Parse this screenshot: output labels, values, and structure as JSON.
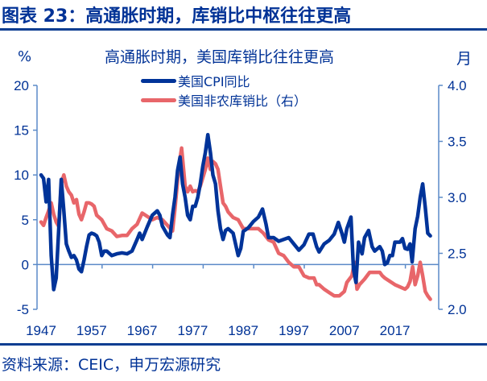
{
  "header": {
    "title": "图表 23：高通胀时期，库销比中枢往往更高"
  },
  "footer": {
    "source": "资料来源：CEIC，申万宏源研究"
  },
  "colors": {
    "cpi": "#003399",
    "ratio": "#e8666a",
    "axis": "#5b8ac8",
    "text": "#003296"
  },
  "chart_data": {
    "type": "line",
    "title": "高通胀时期，美国库销比往往更高",
    "ylabel_left": "%",
    "ylabel_right": "月",
    "ylim_left": [
      -5,
      20
    ],
    "ylim_right": [
      2.0,
      4.0
    ],
    "yticks_left": [
      "20",
      "15",
      "10",
      "5",
      "0",
      "-5"
    ],
    "yticks_right": [
      "4.0",
      "3.5",
      "3.0",
      "2.5",
      "2.0"
    ],
    "xticks": [
      "1947",
      "1957",
      "1967",
      "1977",
      "1987",
      "1997",
      "2007",
      "2017"
    ],
    "grid": false,
    "legend_position": "top-center",
    "series": [
      {
        "name": "美国CPI同比",
        "axis": "left",
        "x": [
          1947.0,
          1947.5,
          1948.0,
          1948.5,
          1949.0,
          1949.5,
          1950.0,
          1950.5,
          1951.0,
          1951.5,
          1952.0,
          1952.5,
          1953.0,
          1953.5,
          1954.0,
          1954.5,
          1955.0,
          1955.5,
          1956.0,
          1956.5,
          1957.0,
          1957.5,
          1958.0,
          1958.5,
          1959.0,
          1959.5,
          1960.0,
          1961.0,
          1962.0,
          1963.0,
          1964.0,
          1965.0,
          1966.0,
          1966.5,
          1967.0,
          1968.0,
          1969.0,
          1970.0,
          1970.5,
          1971.0,
          1972.0,
          1972.5,
          1973.0,
          1973.5,
          1974.0,
          1974.5,
          1975.0,
          1975.5,
          1976.0,
          1976.5,
          1977.0,
          1977.5,
          1978.0,
          1978.5,
          1979.0,
          1979.5,
          1980.0,
          1980.5,
          1981.0,
          1981.5,
          1982.0,
          1982.5,
          1983.0,
          1983.5,
          1984.0,
          1985.0,
          1986.0,
          1986.5,
          1987.0,
          1988.0,
          1989.0,
          1990.0,
          1990.8,
          1991.5,
          1992.0,
          1993.0,
          1994.0,
          1995.0,
          1996.0,
          1997.0,
          1998.0,
          1999.0,
          2000.0,
          2000.8,
          2001.5,
          2002.0,
          2003.0,
          2004.0,
          2005.0,
          2005.8,
          2006.5,
          2007.0,
          2007.5,
          2008.3,
          2008.8,
          2009.3,
          2009.8,
          2010.5,
          2011.0,
          2011.8,
          2012.5,
          2013.0,
          2014.0,
          2014.5,
          2015.0,
          2015.5,
          2016.0,
          2016.5,
          2017.0,
          2018.0,
          2018.5,
          2019.0,
          2019.5,
          2020.0,
          2020.4,
          2021.0,
          2021.5,
          2022.0,
          2022.5,
          2023.0,
          2023.5,
          2024.0
        ],
        "y": [
          10.0,
          9.6,
          7.0,
          9.5,
          1.0,
          -2.8,
          -1.5,
          4.0,
          9.5,
          6.0,
          2.3,
          1.5,
          0.8,
          1.0,
          0.5,
          -0.5,
          -0.8,
          0.5,
          2.0,
          3.3,
          3.5,
          3.4,
          3.2,
          2.5,
          1.0,
          1.5,
          1.5,
          1.0,
          1.2,
          1.3,
          1.2,
          1.5,
          2.8,
          3.5,
          2.8,
          4.2,
          5.5,
          6.0,
          5.5,
          4.3,
          3.3,
          3.0,
          5.5,
          7.5,
          10.5,
          12.0,
          9.0,
          7.5,
          5.5,
          5.0,
          6.5,
          6.5,
          7.5,
          9.0,
          11.0,
          12.5,
          14.5,
          12.5,
          10.0,
          9.0,
          6.0,
          4.0,
          2.8,
          3.8,
          4.0,
          3.5,
          1.0,
          1.8,
          3.7,
          4.1,
          4.8,
          5.3,
          6.2,
          4.5,
          3.0,
          3.0,
          2.6,
          2.8,
          3.0,
          2.3,
          1.6,
          2.2,
          3.4,
          3.4,
          2.0,
          1.4,
          2.3,
          2.7,
          3.4,
          4.7,
          3.5,
          2.5,
          4.0,
          5.3,
          -0.5,
          -2.0,
          2.5,
          1.2,
          3.0,
          3.8,
          2.0,
          1.5,
          2.0,
          1.5,
          0.0,
          0.2,
          1.0,
          1.0,
          2.5,
          2.5,
          2.9,
          1.8,
          1.7,
          2.3,
          0.3,
          4.0,
          5.4,
          7.5,
          9.0,
          6.4,
          3.5,
          3.2
        ],
        "y_fill_note": "values approximate, read from plot"
      },
      {
        "name": "美国非农库销比（右）",
        "axis": "right",
        "x": [
          1947.0,
          1947.5,
          1948.0,
          1948.5,
          1949.0,
          1949.5,
          1950.0,
          1950.5,
          1951.0,
          1951.5,
          1952.0,
          1952.5,
          1953.0,
          1953.5,
          1954.0,
          1954.5,
          1955.0,
          1955.5,
          1956.0,
          1956.5,
          1957.0,
          1957.5,
          1958.0,
          1959.0,
          1960.0,
          1961.0,
          1962.0,
          1963.0,
          1964.0,
          1965.0,
          1966.0,
          1967.0,
          1968.0,
          1969.0,
          1970.0,
          1971.0,
          1972.0,
          1973.0,
          1973.5,
          1974.0,
          1974.5,
          1974.8,
          1975.5,
          1976.0,
          1976.5,
          1977.0,
          1977.5,
          1978.0,
          1978.5,
          1979.5,
          1980.0,
          1980.5,
          1981.0,
          1981.5,
          1982.0,
          1982.5,
          1983.0,
          1983.5,
          1984.0,
          1985.0,
          1986.0,
          1987.0,
          1988.0,
          1989.0,
          1990.0,
          1991.0,
          1992.0,
          1993.0,
          1994.0,
          1995.0,
          1996.0,
          1997.0,
          1998.0,
          1999.0,
          2000.0,
          2001.0,
          2001.5,
          2002.0,
          2003.0,
          2004.0,
          2005.0,
          2006.0,
          2007.0,
          2007.5,
          2008.5,
          2009.0,
          2009.5,
          2010.0,
          2011.0,
          2012.0,
          2013.0,
          2014.0,
          2014.5,
          2015.0,
          2016.0,
          2017.0,
          2018.0,
          2019.0,
          2019.5,
          2020.0,
          2020.5,
          2021.0,
          2021.5,
          2022.0,
          2022.5,
          2023.0,
          2023.5,
          2024.0
        ],
        "y": [
          2.78,
          2.75,
          2.82,
          2.88,
          2.95,
          2.85,
          2.78,
          2.74,
          3.12,
          3.2,
          3.1,
          3.05,
          3.02,
          2.95,
          2.98,
          2.85,
          2.8,
          2.87,
          2.95,
          2.95,
          2.94,
          2.92,
          2.84,
          2.8,
          2.72,
          2.7,
          2.65,
          2.66,
          2.66,
          2.72,
          2.76,
          2.86,
          2.83,
          2.8,
          2.82,
          2.8,
          2.75,
          2.7,
          2.9,
          3.15,
          3.35,
          3.44,
          3.1,
          3.05,
          3.1,
          3.05,
          3.06,
          3.05,
          3.1,
          3.25,
          3.35,
          3.25,
          3.32,
          3.3,
          3.25,
          3.1,
          2.95,
          2.92,
          2.87,
          2.82,
          2.8,
          2.72,
          2.72,
          2.72,
          2.72,
          2.68,
          2.62,
          2.6,
          2.5,
          2.48,
          2.42,
          2.38,
          2.38,
          2.3,
          2.28,
          2.28,
          2.22,
          2.22,
          2.18,
          2.15,
          2.12,
          2.12,
          2.16,
          2.24,
          2.3,
          2.42,
          2.18,
          2.22,
          2.27,
          2.33,
          2.33,
          2.33,
          2.3,
          2.28,
          2.25,
          2.22,
          2.2,
          2.18,
          2.2,
          2.25,
          2.38,
          2.22,
          2.3,
          2.42,
          2.3,
          2.16,
          2.12,
          2.09
        ]
      }
    ]
  }
}
